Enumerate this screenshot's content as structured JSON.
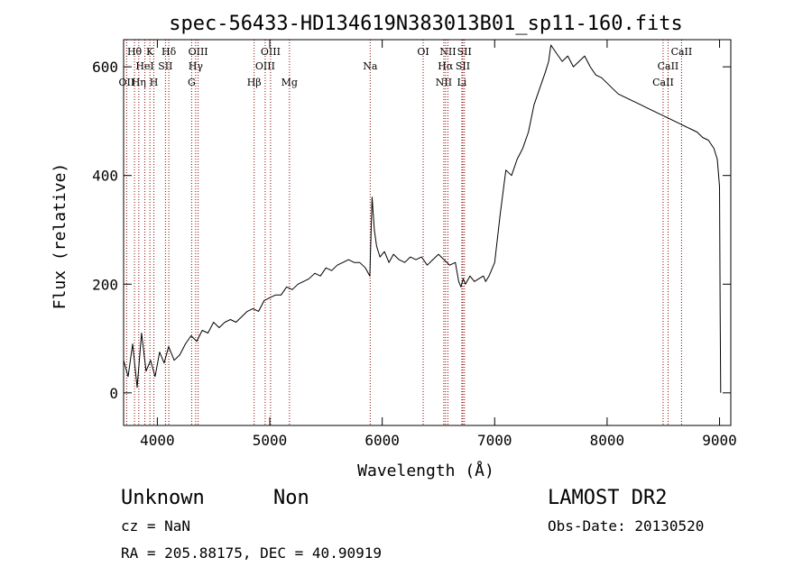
{
  "chart_data": {
    "type": "line",
    "title": "spec-56433-HD134619N383013B01_sp11-160.fits",
    "xlabel": "Wavelength (Å)",
    "ylabel": "Flux (relative)",
    "xlim": [
      3700,
      9100
    ],
    "ylim": [
      -60,
      650
    ],
    "x_ticks": [
      4000,
      5000,
      6000,
      7000,
      8000,
      9000
    ],
    "y_ticks": [
      0,
      200,
      400,
      600
    ],
    "x_tick_labels": [
      "4000",
      "5000",
      "6000",
      "7000",
      "8000",
      "9000"
    ],
    "y_tick_labels": [
      "0",
      "200",
      "400",
      "600"
    ],
    "grid": false,
    "series": [
      {
        "color": "#000000",
        "x": [
          3700,
          3740,
          3780,
          3820,
          3860,
          3900,
          3940,
          3980,
          4020,
          4060,
          4100,
          4150,
          4200,
          4250,
          4300,
          4350,
          4400,
          4450,
          4500,
          4550,
          4600,
          4650,
          4700,
          4750,
          4800,
          4850,
          4900,
          4950,
          5000,
          5050,
          5100,
          5150,
          5200,
          5250,
          5300,
          5350,
          5400,
          5450,
          5500,
          5550,
          5600,
          5650,
          5700,
          5750,
          5800,
          5850,
          5890,
          5910,
          5930,
          5950,
          5980,
          6020,
          6060,
          6100,
          6150,
          6200,
          6250,
          6300,
          6350,
          6400,
          6450,
          6500,
          6550,
          6600,
          6650,
          6680,
          6700,
          6720,
          6740,
          6780,
          6820,
          6860,
          6900,
          6920,
          6950,
          6980,
          7000,
          7050,
          7100,
          7150,
          7200,
          7250,
          7300,
          7350,
          7400,
          7450,
          7480,
          7500,
          7550,
          7600,
          7650,
          7700,
          7750,
          7800,
          7850,
          7900,
          7950,
          8000,
          8050,
          8100,
          8150,
          8200,
          8250,
          8300,
          8350,
          8400,
          8450,
          8500,
          8550,
          8600,
          8650,
          8700,
          8750,
          8800,
          8850,
          8900,
          8950,
          8980,
          9000,
          9005,
          9010,
          9010
        ],
        "y": [
          60,
          30,
          90,
          10,
          110,
          40,
          60,
          30,
          75,
          55,
          85,
          60,
          70,
          90,
          105,
          95,
          115,
          110,
          130,
          120,
          130,
          135,
          130,
          140,
          150,
          155,
          150,
          170,
          175,
          180,
          180,
          195,
          190,
          200,
          205,
          210,
          220,
          215,
          230,
          225,
          235,
          240,
          245,
          240,
          240,
          230,
          215,
          360,
          300,
          270,
          250,
          260,
          240,
          255,
          245,
          240,
          250,
          245,
          250,
          235,
          245,
          255,
          245,
          235,
          240,
          205,
          195,
          210,
          200,
          215,
          205,
          210,
          215,
          205,
          215,
          230,
          240,
          330,
          410,
          400,
          430,
          450,
          480,
          530,
          560,
          590,
          610,
          640,
          625,
          610,
          620,
          600,
          610,
          620,
          600,
          585,
          580,
          570,
          560,
          550,
          545,
          540,
          535,
          530,
          525,
          520,
          515,
          510,
          505,
          500,
          495,
          490,
          485,
          480,
          470,
          465,
          450,
          430,
          380,
          150,
          0,
          0
        ]
      }
    ],
    "line_markers": [
      {
        "label": "OII",
        "x": 3727,
        "row": 3
      },
      {
        "label": "Hθ",
        "x": 3797,
        "row": 1
      },
      {
        "label": "HeI",
        "x": 3889,
        "row": 2
      },
      {
        "label": "Hη",
        "x": 3835,
        "row": 3
      },
      {
        "label": "K",
        "x": 3934,
        "row": 1
      },
      {
        "label": "SII",
        "x": 4072,
        "row": 2
      },
      {
        "label": "H",
        "x": 3969,
        "row": 3
      },
      {
        "label": "Hδ",
        "x": 4102,
        "row": 1
      },
      {
        "label": "OIII",
        "x": 4363,
        "row": 1
      },
      {
        "label": "Hγ",
        "x": 4341,
        "row": 2
      },
      {
        "label": "G",
        "x": 4305,
        "row": 3
      },
      {
        "label": "Hβ",
        "x": 4861,
        "row": 3
      },
      {
        "label": "OIII",
        "x": 5007,
        "row": 1
      },
      {
        "label": "OIII",
        "x": 4959,
        "row": 2
      },
      {
        "label": "Mg",
        "x": 5175,
        "row": 3
      },
      {
        "label": "Na",
        "x": 5893,
        "row": 2
      },
      {
        "label": "OI",
        "x": 6364,
        "row": 1
      },
      {
        "label": "NII",
        "x": 6584,
        "row": 1
      },
      {
        "label": "Hα",
        "x": 6563,
        "row": 2
      },
      {
        "label": "NII",
        "x": 6548,
        "row": 3
      },
      {
        "label": "SII",
        "x": 6731,
        "row": 1
      },
      {
        "label": "SII",
        "x": 6717,
        "row": 2
      },
      {
        "label": "Li",
        "x": 6708,
        "row": 3
      },
      {
        "label": "CaII",
        "x": 8662,
        "row": 1
      },
      {
        "label": "CaII",
        "x": 8542,
        "row": 2
      },
      {
        "label": "CaII",
        "x": 8498,
        "row": 3
      }
    ]
  },
  "info": {
    "class": "Unknown",
    "subclass": "Non",
    "cz": "cz = NaN",
    "coords": "RA = 205.88175, DEC =  40.90919",
    "survey": "LAMOST DR2",
    "obs_date": "Obs-Date: 20130520"
  },
  "colors": {
    "axis": "#000000",
    "spectrum": "#000000",
    "line_marker": "#8b0000"
  }
}
